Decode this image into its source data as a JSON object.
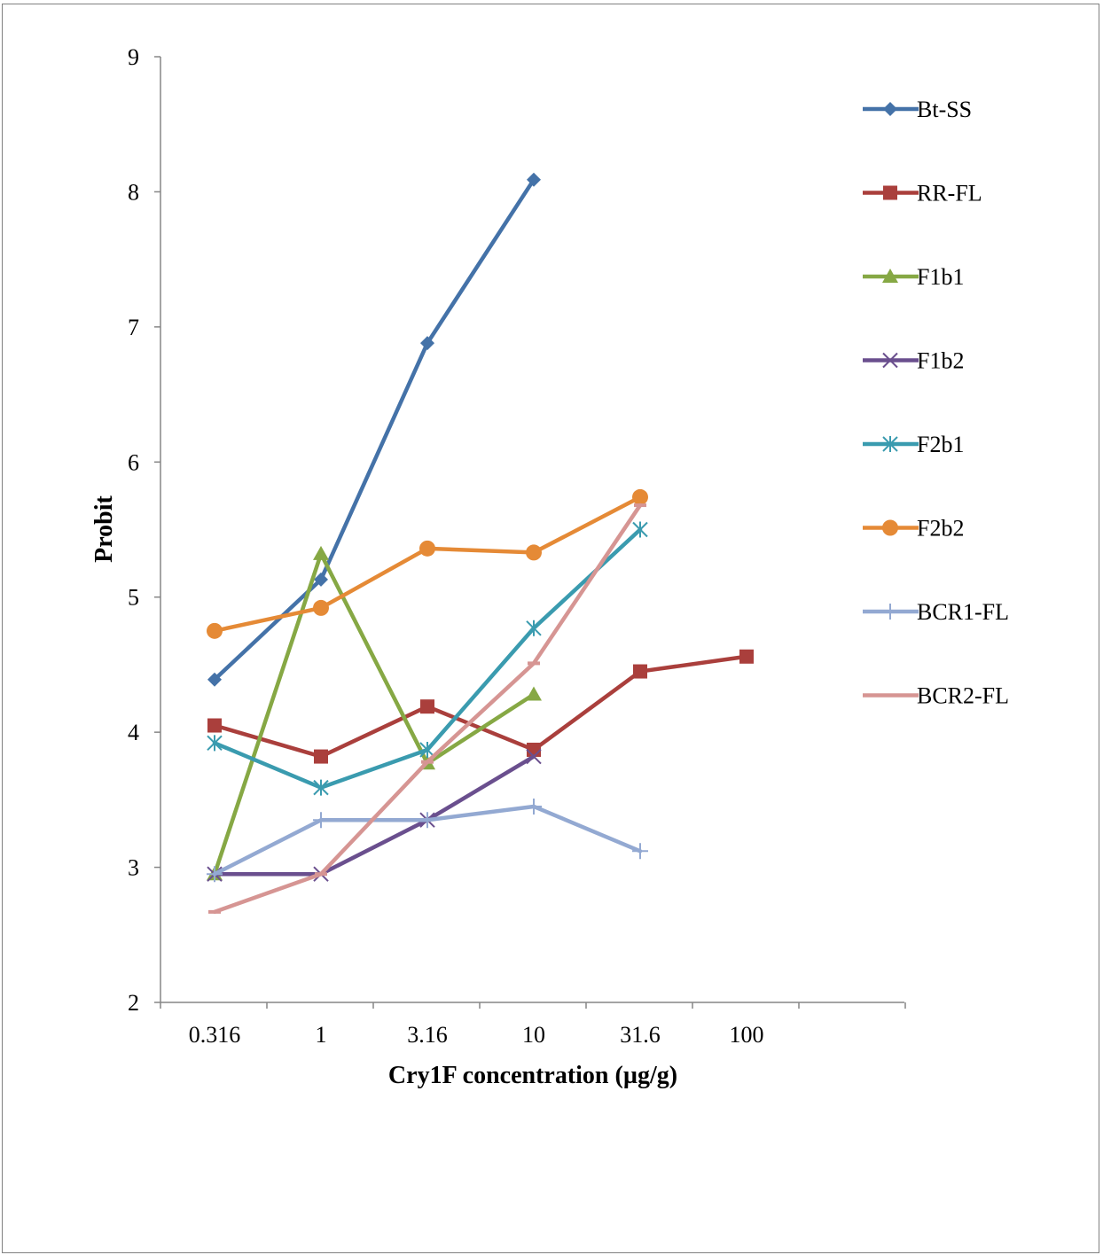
{
  "chart_data": {
    "type": "line",
    "title": "",
    "xlabel": "Cry1F concentration (µg/g)",
    "ylabel": "Probit",
    "categories": [
      "0.316",
      "1",
      "3.16",
      "10",
      "31.6",
      "100"
    ],
    "ylim": [
      2,
      9
    ],
    "yticks": [
      "2",
      "3",
      "4",
      "5",
      "6",
      "7",
      "8",
      "9"
    ],
    "grid": false,
    "legend_position": "right",
    "series": [
      {
        "name": "Bt-SS",
        "color": "#4472A8",
        "marker": "diamond",
        "values": [
          4.39,
          5.13,
          6.88,
          8.09,
          null,
          null
        ]
      },
      {
        "name": "RR-FL",
        "color": "#AA3F3C",
        "marker": "square",
        "values": [
          4.05,
          3.82,
          4.19,
          3.87,
          4.45,
          4.56
        ]
      },
      {
        "name": "F1b1",
        "color": "#86A844",
        "marker": "triangle",
        "values": [
          2.95,
          5.32,
          3.77,
          4.28,
          null,
          null
        ]
      },
      {
        "name": "F1b2",
        "color": "#6A4F8E",
        "marker": "x",
        "values": [
          2.95,
          2.95,
          3.35,
          3.82,
          null,
          null
        ]
      },
      {
        "name": "F2b1",
        "color": "#3A9BAF",
        "marker": "star",
        "values": [
          3.92,
          3.59,
          3.87,
          4.77,
          5.5,
          null
        ]
      },
      {
        "name": "F2b2",
        "color": "#E58A36",
        "marker": "circle",
        "values": [
          4.75,
          4.92,
          5.36,
          5.33,
          5.74,
          null
        ]
      },
      {
        "name": "BCR1-FL",
        "color": "#93A9D2",
        "marker": "plus",
        "values": [
          2.95,
          3.35,
          3.35,
          3.45,
          3.12,
          null
        ]
      },
      {
        "name": "BCR2-FL",
        "color": "#D69593",
        "marker": "dash",
        "values": [
          2.67,
          2.95,
          3.78,
          4.51,
          5.68,
          null
        ]
      }
    ]
  }
}
